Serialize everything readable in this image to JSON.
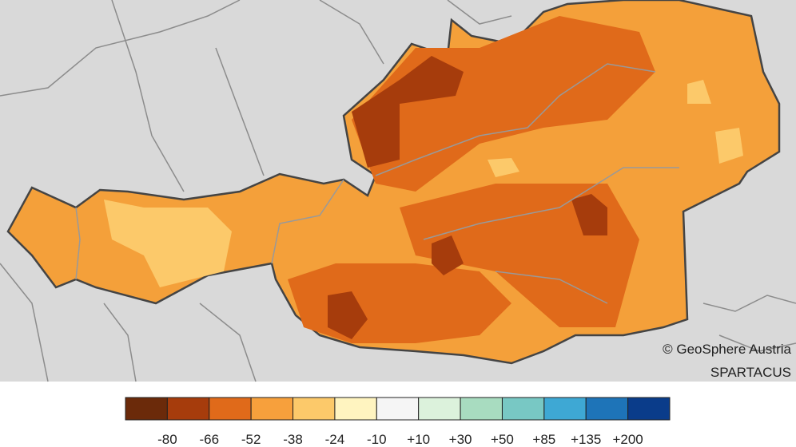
{
  "credit": "© GeoSphere Austria",
  "product": "SPARTACUS",
  "legend": {
    "colors": [
      "#6b2a0a",
      "#a63c0c",
      "#e06a1a",
      "#f7a03c",
      "#fcc96a",
      "#fff4c0",
      "#f5f5f5",
      "#dcf2dc",
      "#a8dcc0",
      "#78c8c4",
      "#3ea8d4",
      "#1e74b8",
      "#0a3c8a"
    ],
    "labels": [
      "-80",
      "-66",
      "-52",
      "-38",
      "-24",
      "-10",
      "+10",
      "+30",
      "+50",
      "+85",
      "+135",
      "+200"
    ]
  }
}
